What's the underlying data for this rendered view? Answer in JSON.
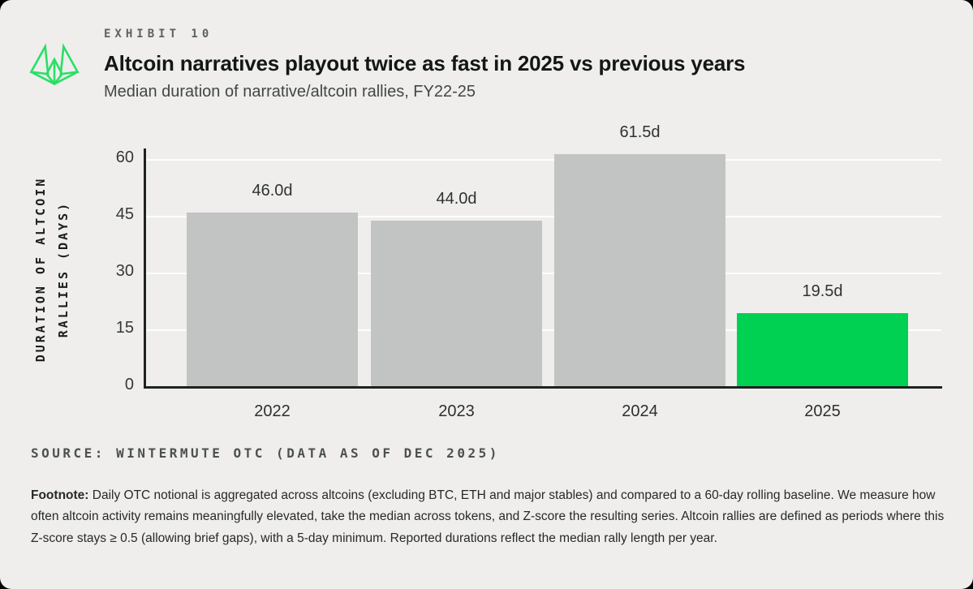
{
  "colors": {
    "card_bg": "#efeeed",
    "bar_gray": "#c1c4c2",
    "bar_green": "#00d153",
    "logo_green": "#2adf66",
    "axis": "#1e2221"
  },
  "header": {
    "exhibit_label": "EXHIBIT 10",
    "title": "Altcoin narratives playout twice as fast in 2025 vs previous years",
    "subtitle": "Median duration of narrative/altcoin rallies, FY22-25"
  },
  "chart_data": {
    "type": "bar",
    "categories": [
      "2022",
      "2023",
      "2024",
      "2025"
    ],
    "values": [
      46.0,
      44.0,
      61.5,
      19.5
    ],
    "bar_labels": [
      "46.0d",
      "44.0d",
      "61.5d",
      "19.5d"
    ],
    "bar_colors": [
      "#c1c4c2",
      "#c1c4c2",
      "#c1c4c2",
      "#00d153"
    ],
    "highlight_category": "2025",
    "title": "Altcoin narratives playout twice as fast in 2025 vs previous years",
    "subtitle": "Median duration of narrative/altcoin rallies, FY22-25",
    "xlabel": "",
    "ylabel_line1": "DURATION OF ALTCOIN",
    "ylabel_line2": "RALLIES (DAYS)",
    "yticks": [
      0,
      15,
      30,
      45,
      60
    ],
    "ylim": [
      0,
      70
    ],
    "grid": "horizontal",
    "legend": "none"
  },
  "source": {
    "text": "SOURCE: WINTERMUTE OTC (DATA AS OF DEC 2025)"
  },
  "footnote": {
    "label": "Footnote:",
    "text": " Daily OTC notional is aggregated across altcoins (excluding BTC, ETH and major stables) and compared to a 60-day rolling baseline. We measure how often altcoin activity remains meaningfully elevated, take the median across tokens, and Z-score the resulting series. Altcoin rallies are defined as periods where this Z-score stays ≥ 0.5 (allowing brief gaps), with a 5-day minimum. Reported durations reflect the median rally length per year."
  }
}
